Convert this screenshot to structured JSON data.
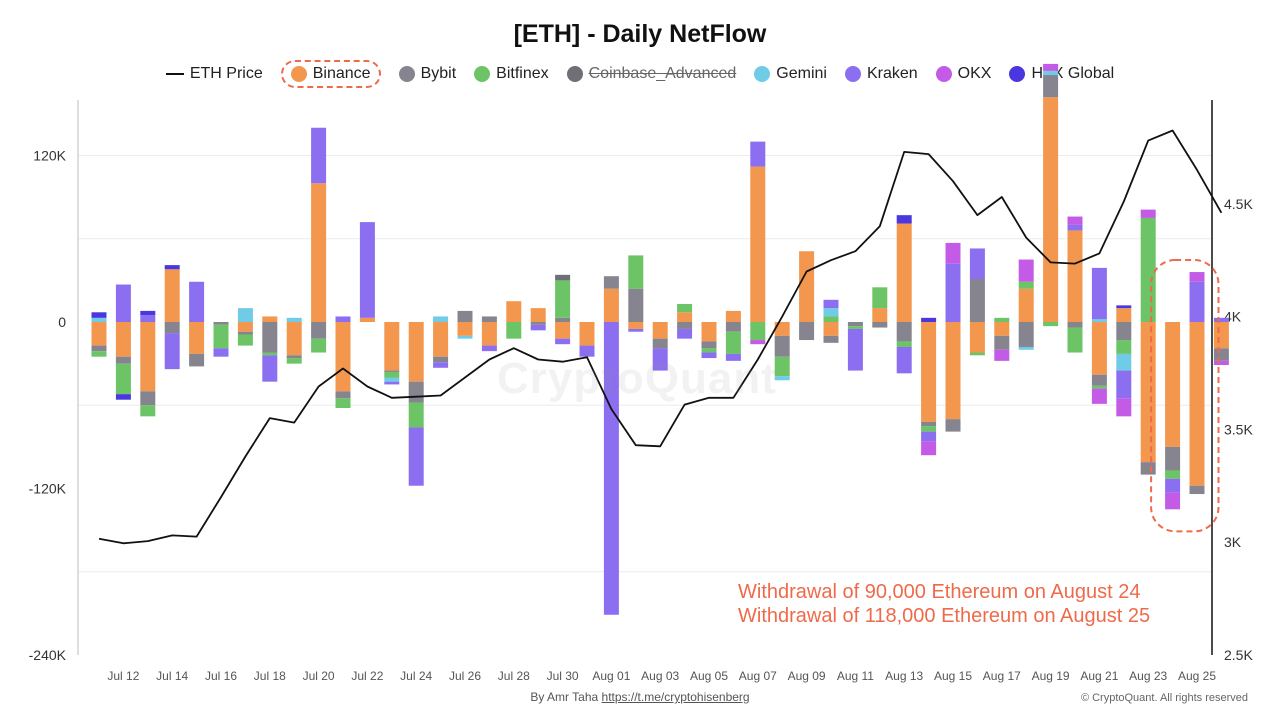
{
  "title": "[ETH] - Daily NetFlow",
  "legend": [
    {
      "label": "ETH Price",
      "kind": "line",
      "color": "#111111",
      "state": "normal"
    },
    {
      "label": "Binance",
      "kind": "dot",
      "color": "#f3974f",
      "state": "highlighted"
    },
    {
      "label": "Bybit",
      "kind": "dot",
      "color": "#85848f",
      "state": "normal"
    },
    {
      "label": "Bitfinex",
      "kind": "dot",
      "color": "#6cc466",
      "state": "normal"
    },
    {
      "label": "Coinbase_Advanced",
      "kind": "dot",
      "color": "#6f6f78",
      "state": "disabled"
    },
    {
      "label": "Gemini",
      "kind": "dot",
      "color": "#6fcbe6",
      "state": "normal"
    },
    {
      "label": "Kraken",
      "kind": "dot",
      "color": "#8b6ff0",
      "state": "normal"
    },
    {
      "label": "OKX",
      "kind": "dot",
      "color": "#c45be6",
      "state": "normal"
    },
    {
      "label": "HTX Global",
      "kind": "dot",
      "color": "#4a37e0",
      "state": "normal"
    }
  ],
  "watermark": "CryptoQuant",
  "annotation": {
    "line1": "Withdrawal of 90,000 Ethereum on August 24",
    "line2": "Withdrawal of 118,000 Ethereum on August 25"
  },
  "footer": {
    "credit_prefix": "By Amr Taha",
    "credit_link": "https://t.me/cryptohisenberg",
    "copyright": "© CryptoQuant. All rights reserved"
  },
  "chart_data": {
    "type": "bar",
    "stacked": true,
    "dates": [
      "Jul 11",
      "Jul 12",
      "Jul 13",
      "Jul 14",
      "Jul 15",
      "Jul 16",
      "Jul 17",
      "Jul 18",
      "Jul 19",
      "Jul 20",
      "Jul 21",
      "Jul 22",
      "Jul 23",
      "Jul 24",
      "Jul 25",
      "Jul 26",
      "Jul 27",
      "Jul 28",
      "Jul 29",
      "Jul 30",
      "Jul 31",
      "Aug 01",
      "Aug 02",
      "Aug 03",
      "Aug 04",
      "Aug 05",
      "Aug 06",
      "Aug 07",
      "Aug 08",
      "Aug 09",
      "Aug 10",
      "Aug 11",
      "Aug 12",
      "Aug 13",
      "Aug 14",
      "Aug 15",
      "Aug 16",
      "Aug 17",
      "Aug 18",
      "Aug 19",
      "Aug 20",
      "Aug 21",
      "Aug 22",
      "Aug 23",
      "Aug 24",
      "Aug 25",
      "Aug 26"
    ],
    "x_tick_labels": [
      "Jul 12",
      "Jul 14",
      "Jul 16",
      "Jul 18",
      "Jul 20",
      "Jul 22",
      "Jul 24",
      "Jul 26",
      "Jul 28",
      "Jul 30",
      "Aug 01",
      "Aug 03",
      "Aug 05",
      "Aug 07",
      "Aug 09",
      "Aug 11",
      "Aug 13",
      "Aug 15",
      "Aug 17",
      "Aug 19",
      "Aug 21",
      "Aug 23",
      "Aug 25"
    ],
    "y_left": {
      "label": "",
      "ylim": [
        -240000,
        160000
      ],
      "ticks": [
        120000,
        0,
        -120000,
        -240000
      ],
      "tick_labels": [
        "120K",
        "0",
        "-120K",
        "-240K"
      ]
    },
    "y_right": {
      "label": "",
      "ylim": [
        2500,
        4960
      ],
      "ticks": [
        4500,
        4000,
        3500,
        3000,
        2500
      ],
      "tick_labels": [
        "4.5K",
        "4K",
        "3.5K",
        "3K",
        "2.5K"
      ]
    },
    "grid": true,
    "legend_position": "top-center",
    "series": [
      {
        "name": "Binance",
        "color": "#f3974f",
        "values": [
          -17000,
          -25000,
          -50000,
          38000,
          -23000,
          0,
          -7000,
          4000,
          -24000,
          100000,
          -50000,
          3000,
          -35000,
          -43000,
          -25000,
          -10000,
          -17000,
          15000,
          10000,
          -12000,
          -17000,
          24000,
          -5000,
          -12000,
          7000,
          -14000,
          8000,
          112000,
          -10000,
          51000,
          -10000,
          0,
          10000,
          71000,
          -72000,
          -70000,
          -22000,
          -10000,
          24000,
          162000,
          66000,
          -38000,
          10000,
          -101000,
          -90000,
          -118000,
          -19000
        ]
      },
      {
        "name": "Bybit",
        "color": "#85848f",
        "values": [
          -4000,
          -5000,
          -10000,
          -8000,
          -9000,
          -2000,
          -2000,
          -22000,
          -2000,
          -12000,
          -5000,
          0,
          -1000,
          -15000,
          -4000,
          8000,
          4000,
          0,
          -2000,
          3000,
          0,
          9000,
          24000,
          -7000,
          -5000,
          -5000,
          -7000,
          0,
          -15000,
          -13000,
          -5000,
          -3000,
          -4000,
          -14000,
          -3000,
          -9000,
          31000,
          -10000,
          -18000,
          16000,
          -4000,
          -8000,
          -13000,
          -9000,
          -17000,
          -6000,
          -9000
        ]
      },
      {
        "name": "Bitfinex",
        "color": "#6cc466",
        "values": [
          -4000,
          -22000,
          -8000,
          0,
          0,
          -17000,
          -8000,
          -2000,
          -4000,
          -10000,
          -7000,
          0,
          -4000,
          -18000,
          0,
          0,
          0,
          -12000,
          0,
          27000,
          0,
          0,
          24000,
          0,
          6000,
          -3000,
          -16000,
          -13000,
          -14000,
          0,
          4000,
          -2000,
          15000,
          -4000,
          -4000,
          0,
          -2000,
          3000,
          5000,
          -3000,
          -18000,
          -2000,
          -10000,
          75000,
          -6000,
          0,
          0
        ]
      },
      {
        "name": "Coinbase_Advanced",
        "color": "#6f6f78",
        "values": [
          0,
          0,
          0,
          0,
          0,
          0,
          0,
          0,
          0,
          0,
          0,
          0,
          0,
          0,
          0,
          0,
          0,
          0,
          0,
          4000,
          0,
          0,
          0,
          0,
          0,
          0,
          0,
          0,
          0,
          0,
          0,
          0,
          0,
          0,
          0,
          0,
          0,
          0,
          0,
          0,
          0,
          0,
          0,
          0,
          0,
          0,
          0
        ]
      },
      {
        "name": "Gemini",
        "color": "#6fcbe6",
        "values": [
          3000,
          0,
          0,
          0,
          0,
          0,
          10000,
          0,
          3000,
          0,
          0,
          0,
          -3000,
          0,
          4000,
          -2000,
          0,
          0,
          0,
          0,
          0,
          0,
          0,
          0,
          0,
          0,
          0,
          0,
          -3000,
          0,
          6000,
          0,
          0,
          0,
          0,
          0,
          0,
          0,
          -2000,
          3000,
          0,
          2000,
          -12000,
          0,
          0,
          0,
          0
        ]
      },
      {
        "name": "Kraken",
        "color": "#8b6ff0",
        "values": [
          0,
          27000,
          5000,
          -26000,
          29000,
          -6000,
          0,
          -19000,
          0,
          40000,
          4000,
          69000,
          -2000,
          -42000,
          -4000,
          0,
          -4000,
          0,
          -4000,
          -4000,
          -8000,
          -211000,
          -2000,
          -16000,
          -7000,
          -4000,
          -5000,
          18000,
          0,
          0,
          6000,
          -30000,
          0,
          -19000,
          -7000,
          42000,
          22000,
          0,
          0,
          0,
          4000,
          37000,
          -20000,
          0,
          -10000,
          29000,
          3000
        ]
      },
      {
        "name": "OKX",
        "color": "#c45be6",
        "values": [
          0,
          0,
          0,
          0,
          0,
          0,
          0,
          0,
          0,
          0,
          0,
          0,
          0,
          0,
          0,
          0,
          0,
          0,
          0,
          0,
          0,
          0,
          0,
          0,
          0,
          0,
          0,
          -3000,
          0,
          0,
          0,
          0,
          0,
          0,
          -10000,
          15000,
          0,
          -8000,
          16000,
          5000,
          6000,
          -11000,
          -13000,
          6000,
          -12000,
          7000,
          -3000
        ]
      },
      {
        "name": "HTX Global",
        "color": "#4a37e0",
        "values": [
          4000,
          -4000,
          3000,
          3000,
          0,
          0,
          0,
          0,
          0,
          0,
          0,
          0,
          0,
          0,
          0,
          0,
          0,
          0,
          0,
          0,
          0,
          0,
          0,
          0,
          0,
          0,
          0,
          0,
          0,
          0,
          0,
          0,
          0,
          6000,
          3000,
          0,
          0,
          0,
          0,
          0,
          0,
          0,
          2000,
          0,
          0,
          0,
          0
        ]
      }
    ],
    "line_series": {
      "name": "ETH Price",
      "color": "#111111",
      "axis": "right",
      "values": [
        3015,
        2995,
        3005,
        3030,
        3025,
        3200,
        3380,
        3550,
        3530,
        3690,
        3770,
        3690,
        3640,
        3645,
        3650,
        3730,
        3810,
        3860,
        3810,
        3800,
        3820,
        3590,
        3430,
        3425,
        3610,
        3640,
        3640,
        3810,
        4000,
        4200,
        4250,
        4290,
        4400,
        4730,
        4720,
        4600,
        4450,
        4530,
        4350,
        4240,
        4235,
        4280,
        4510,
        4780,
        4825,
        4650,
        4460
      ]
    },
    "highlight": {
      "dates": [
        "Aug 24",
        "Aug 25"
      ],
      "note": "dashed outline"
    }
  }
}
